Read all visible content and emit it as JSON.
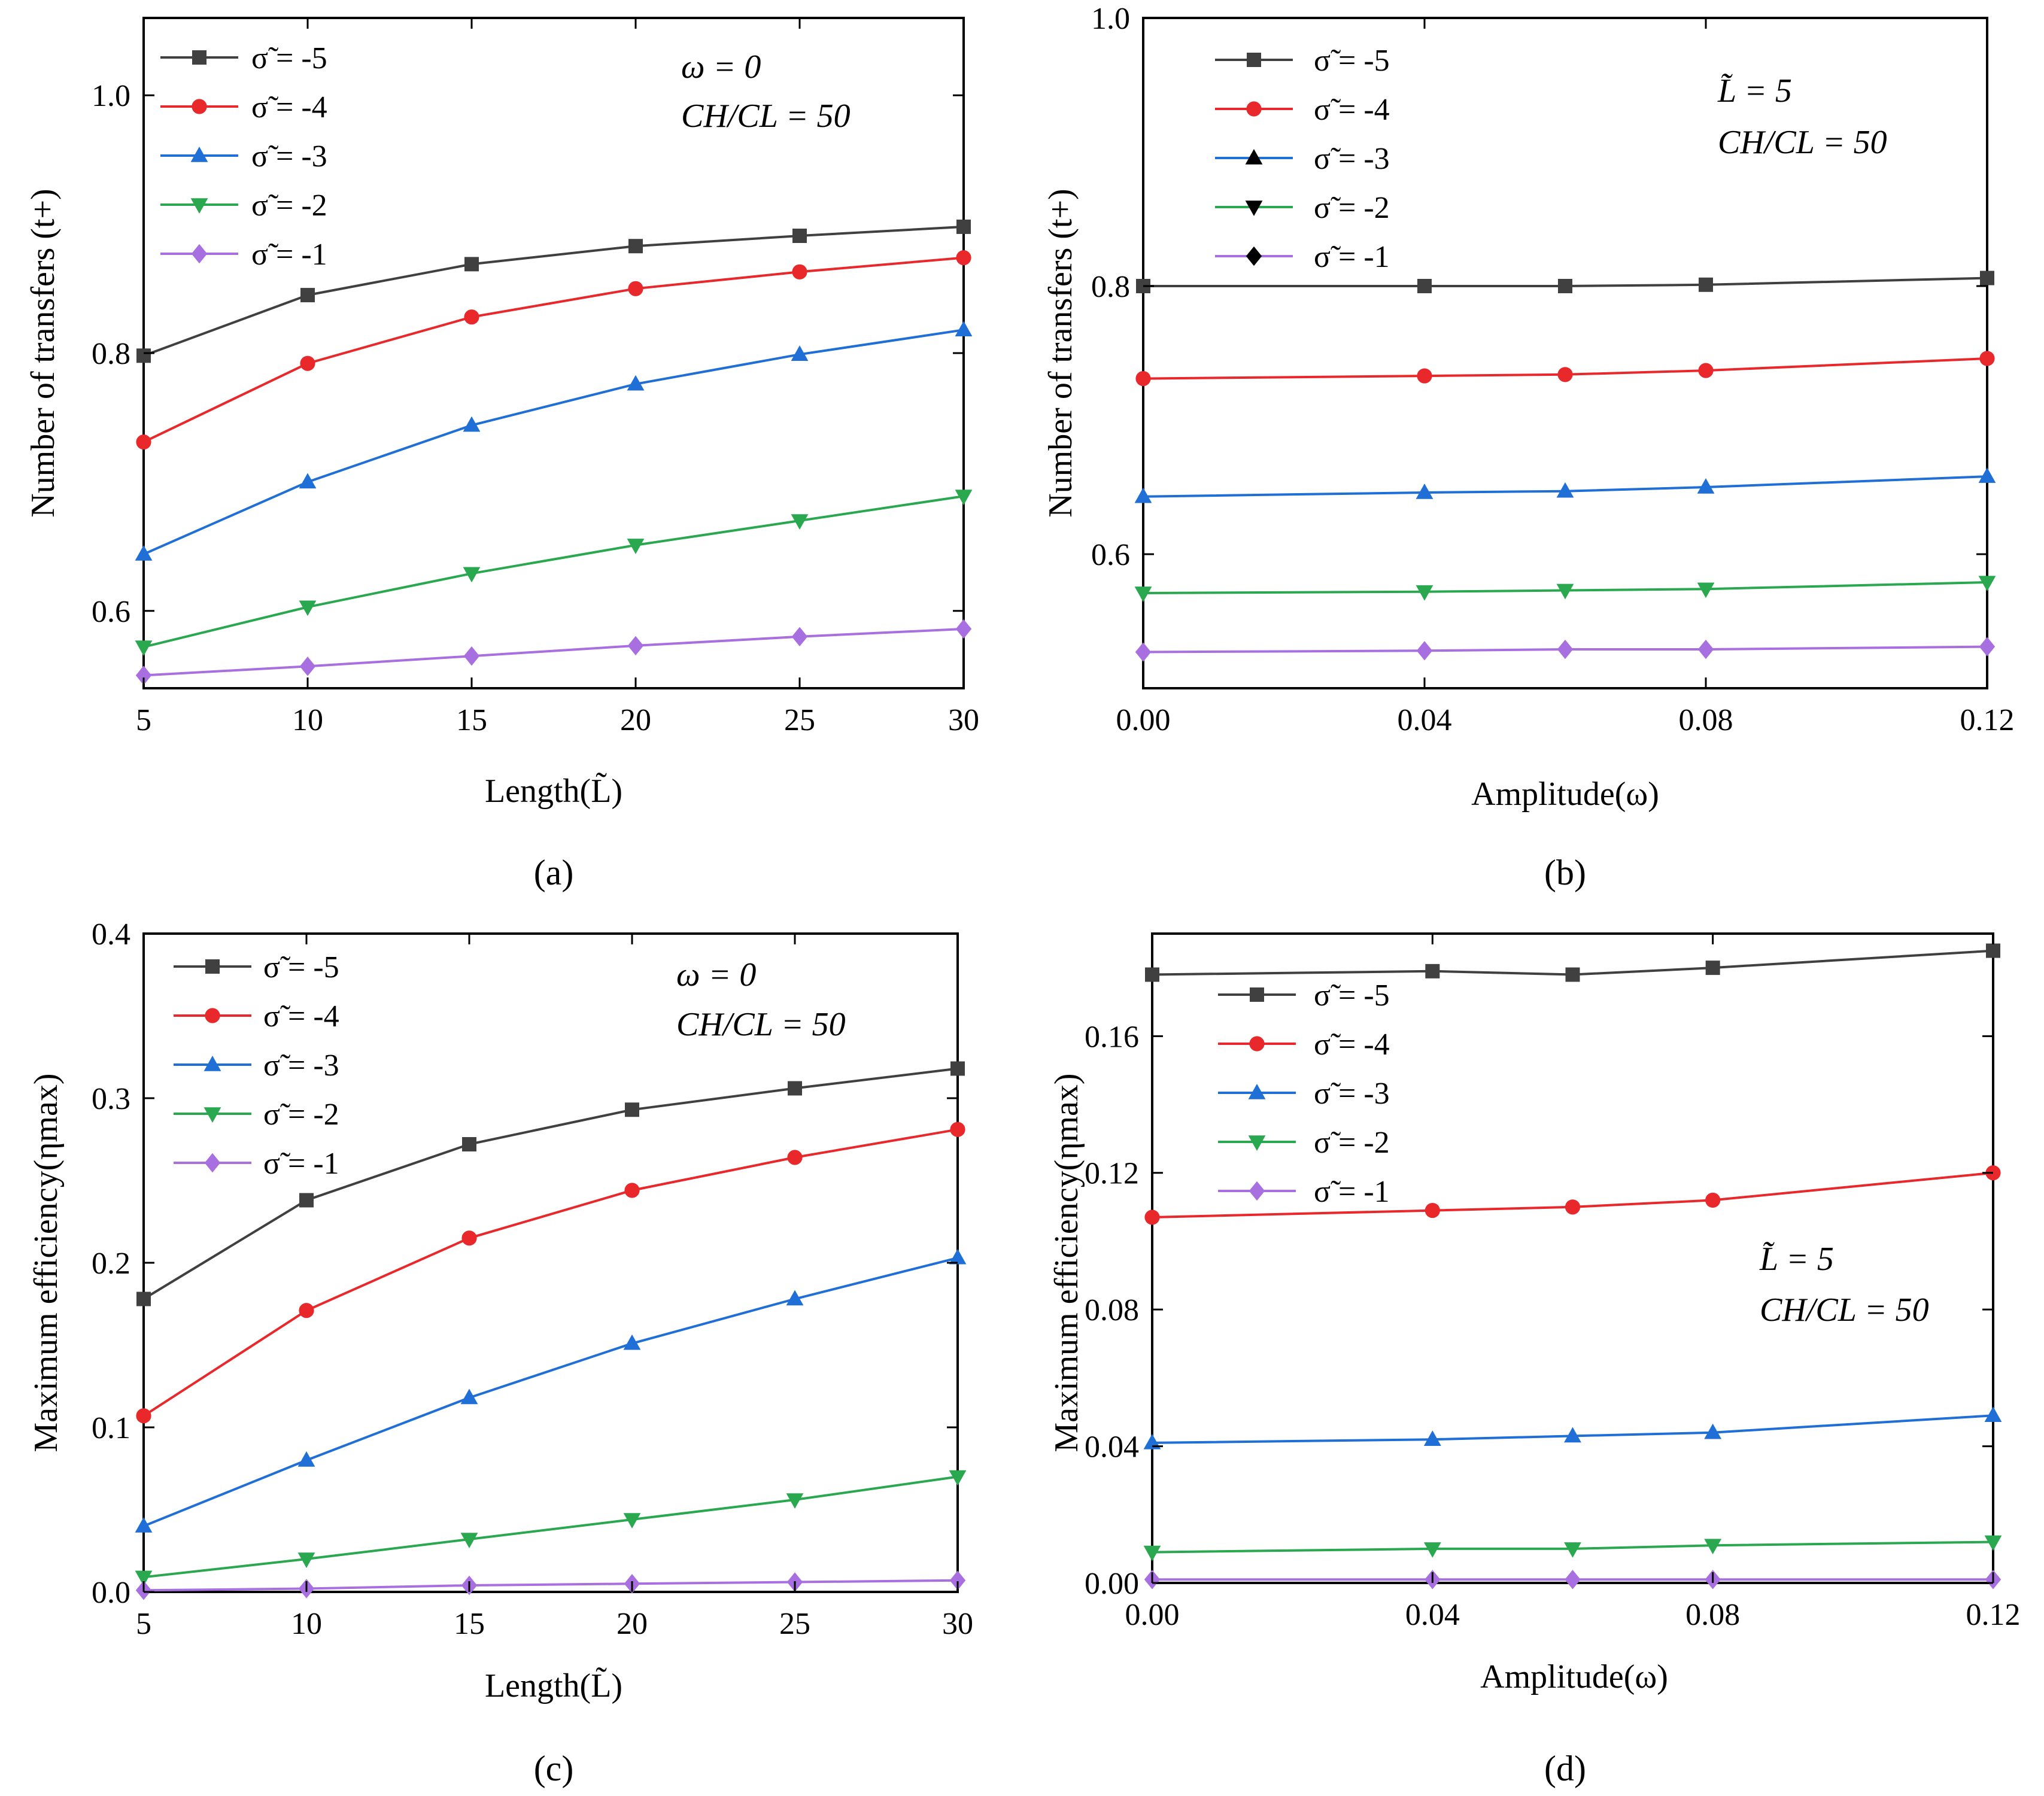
{
  "figure": {
    "series_colors": [
      "#404040",
      "#e8282b",
      "#1f6fd6",
      "#2aa84f",
      "#a86fe0"
    ],
    "marker_shapes": [
      "square",
      "circle",
      "triangle-up",
      "triangle-down",
      "diamond"
    ]
  },
  "chart_data": [
    {
      "id": "a",
      "type": "line",
      "panel_label": "(a)",
      "xlabel": "Length(L̃)",
      "ylabel": "Number of transfers (t+)",
      "xlim": [
        5,
        30
      ],
      "ylim": [
        0.54,
        1.06
      ],
      "xticks": [
        5,
        10,
        15,
        20,
        25,
        30
      ],
      "xtick_labels": [
        "5",
        "10",
        "15",
        "20",
        "25",
        "30"
      ],
      "yticks": [
        0.6,
        0.8,
        1.0
      ],
      "ytick_labels": [
        "0.6",
        "0.8",
        "1.0"
      ],
      "annotations": [
        "ω = 0",
        "CH/CL = 50"
      ],
      "x": [
        5,
        10,
        15,
        20,
        25,
        30
      ],
      "series": [
        {
          "name": "σ̃ = -5",
          "values": [
            0.798,
            0.845,
            0.869,
            0.883,
            0.891,
            0.898
          ]
        },
        {
          "name": "σ̃ = -4",
          "values": [
            0.731,
            0.792,
            0.828,
            0.85,
            0.863,
            0.874
          ]
        },
        {
          "name": "σ̃ = -3",
          "values": [
            0.644,
            0.7,
            0.744,
            0.776,
            0.799,
            0.818
          ]
        },
        {
          "name": "σ̃ = -2",
          "values": [
            0.572,
            0.603,
            0.629,
            0.651,
            0.67,
            0.689
          ]
        },
        {
          "name": "σ̃ = -1",
          "values": [
            0.55,
            0.557,
            0.565,
            0.573,
            0.58,
            0.586
          ]
        }
      ]
    },
    {
      "id": "b",
      "type": "line",
      "panel_label": "(b)",
      "xlabel": "Amplitude(ω)",
      "ylabel": "Number of transfers (t+)",
      "xlim": [
        0,
        0.12
      ],
      "ylim": [
        0.5,
        1.0
      ],
      "xticks": [
        0,
        0.04,
        0.08,
        0.12
      ],
      "xtick_labels": [
        "0.00",
        "0.04",
        "0.08",
        "0.12"
      ],
      "yticks": [
        0.6,
        0.8,
        1.0
      ],
      "ytick_labels": [
        "0.6",
        "0.8",
        "1.0"
      ],
      "annotations": [
        "L̃ = 5",
        "CH/CL = 50"
      ],
      "x": [
        0,
        0.04,
        0.06,
        0.08,
        0.12
      ],
      "series": [
        {
          "name": "σ̃ = -5",
          "values": [
            0.8,
            0.8,
            0.8,
            0.801,
            0.806
          ]
        },
        {
          "name": "σ̃ = -4",
          "values": [
            0.731,
            0.733,
            0.734,
            0.737,
            0.746
          ]
        },
        {
          "name": "σ̃ = -3",
          "values": [
            0.643,
            0.646,
            0.647,
            0.65,
            0.658
          ]
        },
        {
          "name": "σ̃ = -2",
          "values": [
            0.571,
            0.572,
            0.573,
            0.574,
            0.579
          ]
        },
        {
          "name": "σ̃ = -1",
          "values": [
            0.527,
            0.528,
            0.529,
            0.529,
            0.531
          ]
        }
      ]
    },
    {
      "id": "c",
      "type": "line",
      "panel_label": "(c)",
      "xlabel": "Length(L̃)",
      "ylabel": "Maximum efficiency(ηmax)",
      "xlim": [
        5,
        30
      ],
      "ylim": [
        0,
        0.4
      ],
      "xticks": [
        5,
        10,
        15,
        20,
        25,
        30
      ],
      "xtick_labels": [
        "5",
        "10",
        "15",
        "20",
        "25",
        "30"
      ],
      "yticks": [
        0,
        0.1,
        0.2,
        0.3,
        0.4
      ],
      "ytick_labels": [
        "0.0",
        "0.1",
        "0.2",
        "0.3",
        "0.4"
      ],
      "annotations": [
        "ω = 0",
        "CH/CL = 50"
      ],
      "x": [
        5,
        10,
        15,
        20,
        25,
        30
      ],
      "series": [
        {
          "name": "σ̃ = -5",
          "values": [
            0.178,
            0.238,
            0.272,
            0.293,
            0.306,
            0.318
          ]
        },
        {
          "name": "σ̃ = -4",
          "values": [
            0.107,
            0.171,
            0.215,
            0.244,
            0.264,
            0.281
          ]
        },
        {
          "name": "σ̃ = -3",
          "values": [
            0.04,
            0.08,
            0.118,
            0.151,
            0.178,
            0.203
          ]
        },
        {
          "name": "σ̃ = -2",
          "values": [
            0.009,
            0.02,
            0.032,
            0.044,
            0.056,
            0.07
          ]
        },
        {
          "name": "σ̃ = -1",
          "values": [
            0.001,
            0.002,
            0.004,
            0.005,
            0.006,
            0.007
          ]
        }
      ]
    },
    {
      "id": "d",
      "type": "line",
      "panel_label": "(d)",
      "xlabel": "Amplitude(ω)",
      "ylabel": "Maximum efficiency(ηmax)",
      "xlim": [
        0,
        0.12
      ],
      "ylim": [
        0,
        0.19
      ],
      "xticks": [
        0,
        0.04,
        0.08,
        0.12
      ],
      "xtick_labels": [
        "0.00",
        "0.04",
        "0.08",
        "0.12"
      ],
      "yticks": [
        0,
        0.04,
        0.08,
        0.12,
        0.16
      ],
      "ytick_labels": [
        "0.00",
        "0.04",
        "0.08",
        "0.12",
        "0.16"
      ],
      "annotations": [
        "L̃ = 5",
        "CH/CL = 50"
      ],
      "x": [
        0,
        0.04,
        0.06,
        0.08,
        0.12
      ],
      "series": [
        {
          "name": "σ̃ = -5",
          "values": [
            0.178,
            0.179,
            0.178,
            0.18,
            0.185
          ]
        },
        {
          "name": "σ̃ = -4",
          "values": [
            0.107,
            0.109,
            0.11,
            0.112,
            0.12
          ]
        },
        {
          "name": "σ̃ = -3",
          "values": [
            0.041,
            0.042,
            0.043,
            0.044,
            0.049
          ]
        },
        {
          "name": "σ̃ = -2",
          "values": [
            0.009,
            0.01,
            0.01,
            0.011,
            0.012
          ]
        },
        {
          "name": "σ̃ = -1",
          "values": [
            0.001,
            0.001,
            0.001,
            0.001,
            0.001
          ]
        }
      ]
    }
  ]
}
